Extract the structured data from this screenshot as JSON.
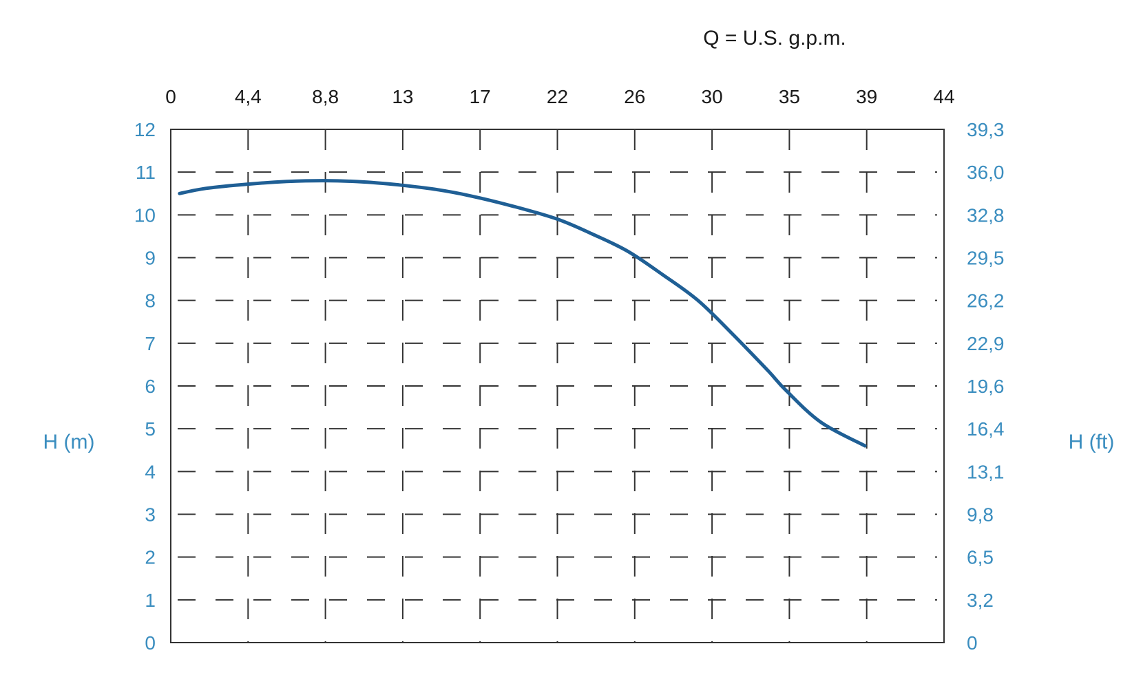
{
  "chart_data": {
    "type": "line",
    "title": "Q = U.S. g.p.m.",
    "xlabel": "Q = U.S. g.p.m.",
    "ylabel": "H (m)",
    "ylabel_right": "H (ft)",
    "x_ticks": [
      "0",
      "4,4",
      "8,8",
      "13",
      "17",
      "22",
      "26",
      "30",
      "35",
      "39",
      "44"
    ],
    "y_ticks_left": [
      "0",
      "1",
      "2",
      "3",
      "4",
      "5",
      "6",
      "7",
      "8",
      "9",
      "10",
      "11",
      "12"
    ],
    "y_ticks_right": [
      "0",
      "3,2",
      "6,5",
      "9,8",
      "13,1",
      "16,4",
      "19,6",
      "22,9",
      "26,2",
      "29,5",
      "32,8",
      "36,0",
      "39,3"
    ],
    "xlim": [
      0,
      44
    ],
    "ylim": [
      0,
      12
    ],
    "grid": true,
    "series": [
      {
        "x": [
          0.5,
          2,
          4.4,
          6.6,
          8.8,
          11,
          13,
          15,
          17,
          19.5,
          22,
          24,
          26,
          28,
          30,
          32,
          34,
          35,
          37,
          39.5
        ],
        "y": [
          10.5,
          10.62,
          10.72,
          10.78,
          10.8,
          10.77,
          10.7,
          10.6,
          10.45,
          10.2,
          9.9,
          9.55,
          9.15,
          8.6,
          8.0,
          7.2,
          6.35,
          5.9,
          5.15,
          4.6
        ]
      }
    ],
    "colors": {
      "curve": "#1f5f95",
      "axis_text": "#3a8dbf",
      "grid": "#333333"
    }
  }
}
